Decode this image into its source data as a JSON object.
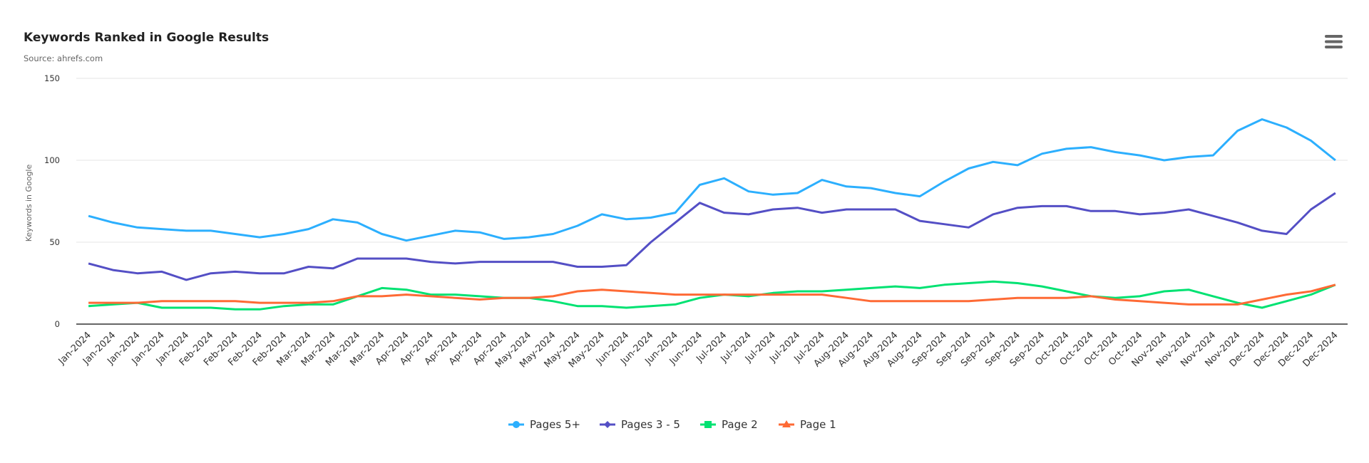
{
  "chart_data": {
    "type": "line",
    "title": "Keywords Ranked in Google Results",
    "subtitle": "Source: ahrefs.com",
    "xlabel": "",
    "ylabel": "Keywords in Google",
    "ylim": [
      0,
      150
    ],
    "yticks": [
      "0",
      "50",
      "100",
      "150"
    ],
    "grid": true,
    "legend_position": "bottom-center",
    "categories": [
      "Jan-2024",
      "Jan-2024",
      "Jan-2024",
      "Jan-2024",
      "Jan-2024",
      "Feb-2024",
      "Feb-2024",
      "Feb-2024",
      "Feb-2024",
      "Mar-2024",
      "Mar-2024",
      "Mar-2024",
      "Mar-2024",
      "Apr-2024",
      "Apr-2024",
      "Apr-2024",
      "Apr-2024",
      "Apr-2024",
      "May-2024",
      "May-2024",
      "May-2024",
      "May-2024",
      "Jun-2024",
      "Jun-2024",
      "Jun-2024",
      "Jun-2024",
      "Jul-2024",
      "Jul-2024",
      "Jul-2024",
      "Jul-2024",
      "Jul-2024",
      "Aug-2024",
      "Aug-2024",
      "Aug-2024",
      "Aug-2024",
      "Sep-2024",
      "Sep-2024",
      "Sep-2024",
      "Sep-2024",
      "Sep-2024",
      "Oct-2024",
      "Oct-2024",
      "Oct-2024",
      "Oct-2024",
      "Nov-2024",
      "Nov-2024",
      "Nov-2024",
      "Nov-2024",
      "Dec-2024",
      "Dec-2024",
      "Dec-2024",
      "Dec-2024"
    ],
    "series": [
      {
        "name": "Pages 5+",
        "color": "#2caffe",
        "marker": "circle",
        "values": [
          66,
          62,
          59,
          58,
          57,
          57,
          55,
          53,
          55,
          58,
          64,
          62,
          55,
          51,
          54,
          57,
          56,
          52,
          53,
          55,
          60,
          67,
          64,
          65,
          68,
          85,
          89,
          81,
          79,
          80,
          88,
          84,
          83,
          80,
          78,
          87,
          95,
          99,
          97,
          104,
          107,
          108,
          105,
          103,
          100,
          102,
          103,
          118,
          125,
          120,
          112,
          100
        ]
      },
      {
        "name": "Pages 3 - 5",
        "color": "#544fc5",
        "marker": "diamond",
        "values": [
          37,
          33,
          31,
          32,
          27,
          31,
          32,
          31,
          31,
          35,
          34,
          40,
          40,
          40,
          38,
          37,
          38,
          38,
          38,
          38,
          35,
          35,
          36,
          50,
          62,
          74,
          68,
          67,
          70,
          71,
          68,
          70,
          70,
          70,
          63,
          61,
          59,
          67,
          71,
          72,
          72,
          69,
          69,
          67,
          68,
          70,
          66,
          62,
          57,
          55,
          70,
          80
        ]
      },
      {
        "name": "Page 2",
        "color": "#00e272",
        "marker": "square",
        "values": [
          11,
          12,
          13,
          10,
          10,
          10,
          9,
          9,
          11,
          12,
          12,
          17,
          22,
          21,
          18,
          18,
          17,
          16,
          16,
          14,
          11,
          11,
          10,
          11,
          12,
          16,
          18,
          17,
          19,
          20,
          20,
          21,
          22,
          23,
          22,
          24,
          25,
          26,
          25,
          23,
          20,
          17,
          16,
          17,
          20,
          21,
          17,
          13,
          10,
          14,
          18,
          24
        ]
      },
      {
        "name": "Page 1",
        "color": "#fe6a35",
        "marker": "triangle",
        "values": [
          13,
          13,
          13,
          14,
          14,
          14,
          14,
          13,
          13,
          13,
          14,
          17,
          17,
          18,
          17,
          16,
          15,
          16,
          16,
          17,
          20,
          21,
          20,
          19,
          18,
          18,
          18,
          18,
          18,
          18,
          18,
          16,
          14,
          14,
          14,
          14,
          14,
          15,
          16,
          16,
          16,
          17,
          15,
          14,
          13,
          12,
          12,
          12,
          15,
          18,
          20,
          24
        ]
      }
    ]
  },
  "menu": {
    "icon": "hamburger-menu-icon"
  }
}
